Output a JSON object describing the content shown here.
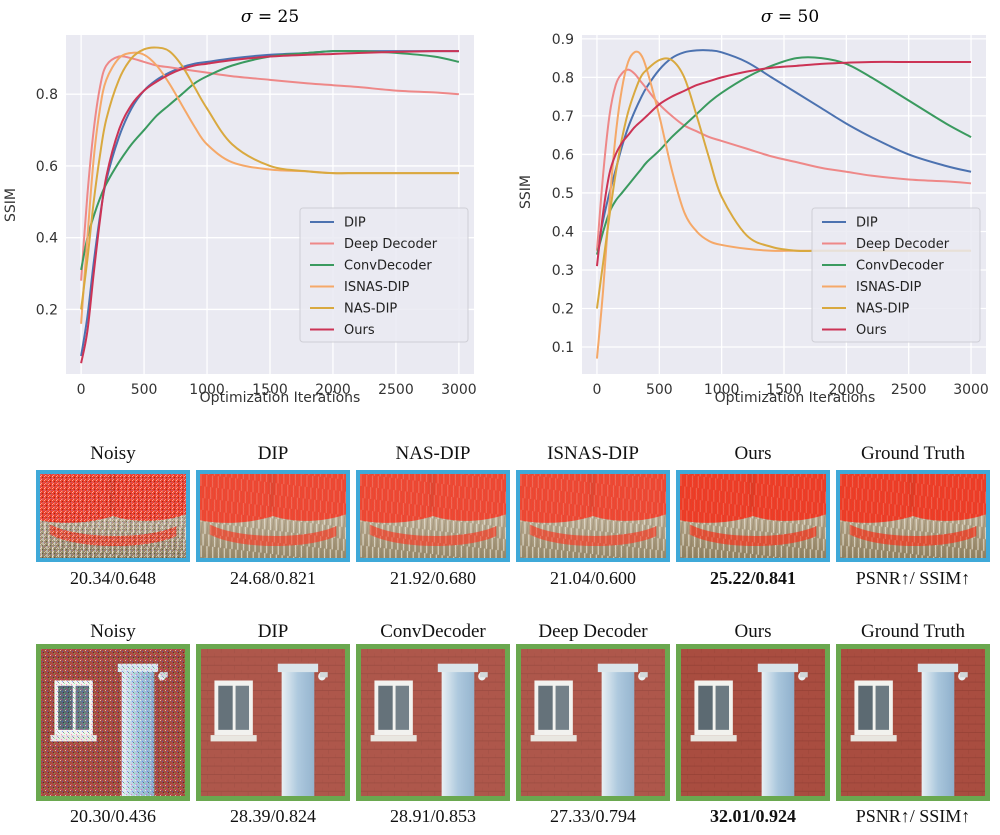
{
  "chart_data": [
    {
      "type": "line",
      "title_symbol": "σ",
      "title_rest": " = 25",
      "xlabel": "Optimization Iterations",
      "ylabel": "SSIM",
      "xlim": [
        -120,
        3120
      ],
      "ylim": [
        0.02,
        0.965
      ],
      "xticks": [
        0,
        500,
        1000,
        1500,
        2000,
        2500,
        3000
      ],
      "yticks": [
        0.2,
        0.4,
        0.6,
        0.8
      ],
      "ytick_labels": [
        "0.2",
        "0.4",
        "0.6",
        "0.8"
      ],
      "x": [
        0,
        50,
        100,
        150,
        200,
        300,
        400,
        500,
        600,
        700,
        800,
        900,
        1000,
        1200,
        1500,
        1800,
        2000,
        2200,
        2500,
        2800,
        3000
      ],
      "series": [
        {
          "name": "DIP",
          "color": "#4c72b0",
          "values": [
            0.07,
            0.18,
            0.33,
            0.46,
            0.56,
            0.68,
            0.76,
            0.81,
            0.84,
            0.86,
            0.875,
            0.885,
            0.89,
            0.9,
            0.91,
            0.915,
            0.92,
            0.92,
            0.92,
            0.92,
            0.92
          ]
        },
        {
          "name": "Deep Decoder",
          "color": "#ee8888",
          "values": [
            0.28,
            0.52,
            0.7,
            0.82,
            0.88,
            0.905,
            0.9,
            0.89,
            0.88,
            0.875,
            0.87,
            0.865,
            0.86,
            0.85,
            0.84,
            0.83,
            0.825,
            0.82,
            0.81,
            0.805,
            0.8
          ]
        },
        {
          "name": "ConvDecoder",
          "color": "#3a9a5f",
          "values": [
            0.31,
            0.4,
            0.46,
            0.51,
            0.55,
            0.61,
            0.66,
            0.7,
            0.74,
            0.77,
            0.8,
            0.83,
            0.85,
            0.88,
            0.905,
            0.915,
            0.92,
            0.92,
            0.915,
            0.905,
            0.89
          ]
        },
        {
          "name": "ISNAS-DIP",
          "color": "#f5a868",
          "values": [
            0.16,
            0.4,
            0.62,
            0.76,
            0.84,
            0.9,
            0.915,
            0.91,
            0.88,
            0.83,
            0.77,
            0.71,
            0.66,
            0.61,
            0.59,
            0.585,
            0.58,
            0.58,
            0.58,
            0.58,
            0.58
          ]
        },
        {
          "name": "NAS-DIP",
          "color": "#d9a93f",
          "values": [
            0.2,
            0.34,
            0.5,
            0.63,
            0.73,
            0.84,
            0.9,
            0.925,
            0.93,
            0.92,
            0.88,
            0.82,
            0.76,
            0.66,
            0.6,
            0.585,
            0.58,
            0.58,
            0.58,
            0.58,
            0.58
          ]
        },
        {
          "name": "Ours",
          "color": "#cc3355",
          "values": [
            0.05,
            0.14,
            0.3,
            0.45,
            0.57,
            0.7,
            0.77,
            0.81,
            0.835,
            0.855,
            0.87,
            0.88,
            0.885,
            0.895,
            0.905,
            0.91,
            0.912,
            0.915,
            0.918,
            0.92,
            0.92
          ]
        }
      ]
    },
    {
      "type": "line",
      "title_symbol": "σ",
      "title_rest": " = 50",
      "xlabel": "Optimization Iterations",
      "ylabel": "SSIM",
      "xlim": [
        -120,
        3120
      ],
      "ylim": [
        0.03,
        0.91
      ],
      "xticks": [
        0,
        500,
        1000,
        1500,
        2000,
        2500,
        3000
      ],
      "yticks": [
        0.1,
        0.2,
        0.3,
        0.4,
        0.5,
        0.6,
        0.7,
        0.8,
        0.9
      ],
      "ytick_labels": [
        "0.1",
        "0.2",
        "0.3",
        "0.4",
        "0.5",
        "0.6",
        "0.7",
        "0.8",
        "0.9"
      ],
      "x": [
        0,
        50,
        100,
        150,
        200,
        250,
        300,
        350,
        400,
        500,
        600,
        700,
        800,
        900,
        1000,
        1200,
        1400,
        1600,
        1800,
        2000,
        2200,
        2500,
        2800,
        3000
      ],
      "series": [
        {
          "name": "DIP",
          "color": "#4c72b0",
          "values": [
            0.35,
            0.43,
            0.5,
            0.56,
            0.62,
            0.67,
            0.71,
            0.745,
            0.775,
            0.82,
            0.85,
            0.865,
            0.87,
            0.87,
            0.865,
            0.84,
            0.8,
            0.76,
            0.72,
            0.68,
            0.645,
            0.6,
            0.57,
            0.555
          ]
        },
        {
          "name": "Deep Decoder",
          "color": "#ee8888",
          "values": [
            0.35,
            0.55,
            0.7,
            0.78,
            0.81,
            0.82,
            0.81,
            0.79,
            0.77,
            0.73,
            0.7,
            0.675,
            0.66,
            0.645,
            0.635,
            0.615,
            0.595,
            0.58,
            0.565,
            0.555,
            0.545,
            0.535,
            0.53,
            0.525
          ]
        },
        {
          "name": "ConvDecoder",
          "color": "#3a9a5f",
          "values": [
            0.34,
            0.4,
            0.45,
            0.48,
            0.5,
            0.52,
            0.54,
            0.56,
            0.58,
            0.61,
            0.645,
            0.675,
            0.705,
            0.735,
            0.76,
            0.8,
            0.83,
            0.85,
            0.85,
            0.835,
            0.8,
            0.74,
            0.68,
            0.645
          ]
        },
        {
          "name": "ISNAS-DIP",
          "color": "#f5a868",
          "values": [
            0.07,
            0.25,
            0.47,
            0.65,
            0.77,
            0.84,
            0.865,
            0.86,
            0.82,
            0.7,
            0.56,
            0.45,
            0.4,
            0.375,
            0.365,
            0.355,
            0.35,
            0.35,
            0.35,
            0.35,
            0.35,
            0.35,
            0.35,
            0.35
          ]
        },
        {
          "name": "NAS-DIP",
          "color": "#d9a93f",
          "values": [
            0.2,
            0.32,
            0.44,
            0.55,
            0.64,
            0.71,
            0.76,
            0.8,
            0.82,
            0.845,
            0.845,
            0.8,
            0.7,
            0.59,
            0.49,
            0.39,
            0.36,
            0.35,
            0.35,
            0.35,
            0.35,
            0.35,
            0.35,
            0.35
          ]
        },
        {
          "name": "Ours",
          "color": "#cc3355",
          "values": [
            0.31,
            0.45,
            0.55,
            0.6,
            0.63,
            0.65,
            0.67,
            0.685,
            0.7,
            0.73,
            0.75,
            0.765,
            0.78,
            0.79,
            0.8,
            0.815,
            0.825,
            0.83,
            0.835,
            0.838,
            0.84,
            0.84,
            0.84,
            0.84
          ]
        }
      ]
    }
  ],
  "comparisons": {
    "row1": {
      "labels": [
        "Noisy",
        "DIP",
        "NAS-DIP",
        "ISNAS-DIP",
        "Ours",
        "Ground Truth"
      ],
      "scores": [
        "20.34/0.648",
        "24.68/0.821",
        "21.92/0.680",
        "21.04/0.600",
        "25.22/0.841",
        "PSNR↑/ SSIM↑"
      ],
      "border_color": "#3fa9d8"
    },
    "row2": {
      "labels": [
        "Noisy",
        "DIP",
        "ConvDecoder",
        "Deep Decoder",
        "Ours",
        "Ground Truth"
      ],
      "scores": [
        "20.30/0.436",
        "28.39/0.824",
        "28.91/0.853",
        "27.33/0.794",
        "32.01/0.924",
        "PSNR↑/ SSIM↑"
      ],
      "border_color": "#6aa84f"
    }
  }
}
